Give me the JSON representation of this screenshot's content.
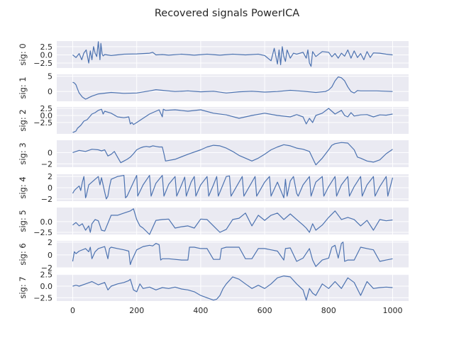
{
  "chart_data": {
    "type": "line",
    "title": "Recovered signals PowerICA",
    "x_ticks": [
      0,
      200,
      400,
      600,
      800,
      1000
    ],
    "xlim": [
      -50,
      1050
    ],
    "line_color": "#4c72b0",
    "panel_bg": "#eaeaf2",
    "grid": true,
    "subplots": [
      {
        "ylabel": "sig: 0",
        "ylim": [
          -4.0,
          4.2
        ],
        "yticks": [
          {
            "v": 2.5,
            "label": "2.5"
          },
          {
            "v": 0,
            "label": "0.0"
          },
          {
            "v": -2.5,
            "label": "−2.5"
          }
        ]
      },
      {
        "ylabel": "sig: 1",
        "ylim": [
          -3.2,
          5.6
        ],
        "yticks": [
          {
            "v": 5,
            "label": "5"
          },
          {
            "v": 0,
            "label": "0"
          }
        ]
      },
      {
        "ylabel": "sig: 2",
        "ylim": [
          -6.5,
          3.0
        ],
        "yticks": [
          {
            "v": 2.5,
            "label": "2.5"
          },
          {
            "v": 0,
            "label": "0.0"
          },
          {
            "v": -2.5,
            "label": "−2.5"
          }
        ]
      },
      {
        "ylabel": "sig: 3",
        "ylim": [
          -2.6,
          2.2
        ],
        "yticks": [
          {
            "v": 0,
            "label": "0"
          },
          {
            "v": -2,
            "label": "−2"
          }
        ]
      },
      {
        "ylabel": "sig: 4",
        "ylim": [
          -2.4,
          2.4
        ],
        "yticks": [
          {
            "v": 2,
            "label": "2"
          },
          {
            "v": 0,
            "label": "0"
          },
          {
            "v": -2,
            "label": "−2"
          }
        ]
      },
      {
        "ylabel": "sig: 5",
        "ylim": [
          -3.0,
          3.3
        ],
        "yticks": [
          {
            "v": 0,
            "label": "0.0"
          },
          {
            "v": -2.5,
            "label": "−2.5"
          }
        ]
      },
      {
        "ylabel": "sig: 6",
        "ylim": [
          -2.0,
          2.2
        ],
        "yticks": [
          {
            "v": 2,
            "label": "2"
          },
          {
            "v": 0,
            "label": "0"
          },
          {
            "v": -2,
            "label": "−2"
          }
        ]
      },
      {
        "ylabel": "sig: 7",
        "ylim": [
          -3.2,
          2.6
        ],
        "yticks": [
          {
            "v": 2.5,
            "label": "2.5"
          },
          {
            "v": 0,
            "label": "0.0"
          },
          {
            "v": -2.5,
            "label": "−2.5"
          }
        ]
      }
    ],
    "series": [
      {
        "x": [
          0,
          10,
          20,
          28,
          35,
          42,
          50,
          55,
          60,
          65,
          70,
          75,
          80,
          85,
          88,
          92,
          95,
          100,
          120,
          160,
          200,
          240,
          250,
          260,
          280,
          300,
          340,
          380,
          420,
          460,
          500,
          540,
          580,
          600,
          620,
          630,
          640,
          645,
          650,
          655,
          660,
          665,
          670,
          680,
          690,
          700,
          720,
          730,
          735,
          740,
          745,
          750,
          760,
          780,
          800,
          810,
          820,
          830,
          840,
          850,
          860,
          870,
          880,
          890,
          900,
          910,
          920,
          930,
          940,
          960,
          980,
          1000
        ],
        "y": [
          0,
          -0.8,
          0.4,
          -1.5,
          0.6,
          1.5,
          -2.5,
          1.2,
          -1.5,
          2.5,
          0.5,
          -0.5,
          4.0,
          -1.5,
          3.5,
          0.2,
          -0.3,
          0.1,
          -0.2,
          0.2,
          0.3,
          0.5,
          0.8,
          0.0,
          0.1,
          -0.1,
          0.2,
          -0.1,
          0.2,
          -0.1,
          0.2,
          0.0,
          0.2,
          -0.2,
          -1.8,
          2.0,
          -2.8,
          1.5,
          -3.0,
          2.5,
          -0.5,
          -2.0,
          1.5,
          -1.0,
          0.5,
          0.2,
          0.8,
          -1.0,
          1.5,
          -2.5,
          -3.5,
          1.0,
          -0.5,
          1.0,
          0.8,
          -0.6,
          0.4,
          -1.0,
          0.5,
          -0.4,
          1.5,
          -1.0,
          1.2,
          -0.8,
          0.4,
          -1.5,
          1.0,
          -0.8,
          0.6,
          0.5,
          0.2,
          0.0
        ]
      },
      {
        "x": [
          0,
          5,
          10,
          15,
          20,
          30,
          40,
          45,
          50,
          60,
          80,
          120,
          160,
          200,
          240,
          260,
          280,
          320,
          360,
          400,
          440,
          480,
          520,
          560,
          600,
          640,
          680,
          720,
          760,
          790,
          800,
          810,
          820,
          830,
          840,
          850,
          860,
          870,
          880,
          890,
          900,
          950,
          1000
        ],
        "y": [
          3.0,
          2.8,
          2.2,
          0.8,
          -0.5,
          -1.8,
          -2.5,
          -2.3,
          -2.0,
          -1.5,
          -0.8,
          -0.3,
          -0.6,
          -0.5,
          0.2,
          0.6,
          0.4,
          0.0,
          0.2,
          -0.1,
          0.1,
          -0.5,
          -0.1,
          0.1,
          -0.2,
          0.0,
          0.4,
          0.1,
          -0.3,
          0.0,
          0.5,
          1.5,
          3.5,
          4.8,
          4.5,
          3.5,
          1.5,
          0.0,
          -0.5,
          0.3,
          0.2,
          0.2,
          0.0
        ]
      },
      {
        "x": [
          0,
          5,
          10,
          15,
          25,
          35,
          45,
          60,
          70,
          80,
          90,
          95,
          100,
          120,
          140,
          160,
          175,
          180,
          185,
          190,
          200,
          220,
          240,
          260,
          270,
          280,
          283,
          290,
          320,
          360,
          400,
          440,
          480,
          520,
          560,
          600,
          640,
          680,
          700,
          720,
          730,
          740,
          750,
          760,
          780,
          800,
          820,
          840,
          850,
          860,
          870,
          880,
          900,
          920,
          940,
          960,
          980,
          1000
        ],
        "y": [
          -6.0,
          -5.8,
          -5.5,
          -4.5,
          -3.5,
          -2.0,
          -1.5,
          0.5,
          1.0,
          1.8,
          2.2,
          0.5,
          1.5,
          0.8,
          -0.5,
          -0.8,
          -0.5,
          -3.0,
          -2.5,
          -3.2,
          -2.5,
          -1.0,
          0.5,
          1.5,
          2.0,
          -0.5,
          2.2,
          1.8,
          2.0,
          1.5,
          2.0,
          0.8,
          0.2,
          -1.0,
          0.0,
          0.8,
          0.0,
          -0.5,
          0.3,
          -0.5,
          -3.0,
          -1.0,
          -2.5,
          0.0,
          0.8,
          2.5,
          0.5,
          1.8,
          0.0,
          -0.5,
          1.0,
          -0.2,
          0.2,
          0.3,
          -0.5,
          0.2,
          0.1,
          0.5
        ]
      },
      {
        "x": [
          0,
          20,
          40,
          60,
          80,
          90,
          100,
          110,
          120,
          130,
          140,
          150,
          160,
          170,
          180,
          190,
          200,
          210,
          220,
          230,
          240,
          250,
          260,
          270,
          280,
          285,
          290,
          320,
          360,
          400,
          420,
          440,
          460,
          480,
          500,
          520,
          540,
          560,
          580,
          600,
          620,
          640,
          660,
          680,
          700,
          720,
          740,
          750,
          760,
          780,
          800,
          810,
          820,
          840,
          860,
          880,
          890,
          900,
          920,
          940,
          960,
          980,
          1000
        ],
        "y": [
          0.0,
          0.4,
          0.2,
          0.6,
          0.5,
          0.3,
          0.5,
          -0.6,
          -0.3,
          0.2,
          -0.8,
          -1.8,
          -1.5,
          -1.2,
          -0.8,
          -0.2,
          0.5,
          0.8,
          1.0,
          1.1,
          1.0,
          1.2,
          1.1,
          1.0,
          1.0,
          -0.2,
          -1.5,
          -1.2,
          -0.3,
          0.5,
          1.0,
          1.3,
          1.2,
          0.8,
          0.2,
          -0.5,
          -1.0,
          -1.5,
          -1.0,
          -0.3,
          0.5,
          1.0,
          1.4,
          1.2,
          0.8,
          0.6,
          0.2,
          -1.0,
          -2.2,
          -1.0,
          0.5,
          1.3,
          1.6,
          1.8,
          1.7,
          0.5,
          -0.8,
          -1.0,
          -1.5,
          -1.7,
          -1.3,
          -0.2,
          0.6
        ]
      },
      {
        "x": [
          0,
          5,
          10,
          20,
          25,
          30,
          35,
          40,
          42,
          50,
          60,
          70,
          80,
          85,
          90,
          100,
          105,
          110,
          115,
          120,
          140,
          160,
          165,
          170,
          190,
          200,
          203,
          220,
          240,
          245,
          260,
          280,
          285,
          300,
          320,
          325,
          340,
          350,
          355,
          370,
          380,
          385,
          400,
          420,
          425,
          440,
          450,
          455,
          480,
          490,
          495,
          520,
          530,
          535,
          560,
          570,
          575,
          600,
          615,
          620,
          640,
          660,
          665,
          670,
          680,
          690,
          700,
          705,
          720,
          740,
          745,
          760,
          780,
          785,
          800,
          820,
          825,
          840,
          860,
          865,
          880,
          900,
          905,
          920,
          940,
          945,
          960,
          980,
          985,
          1000
        ],
        "y": [
          -1.0,
          -0.5,
          -0.2,
          0.3,
          -0.5,
          1.0,
          2.0,
          -1.8,
          -1.5,
          0.5,
          1.0,
          1.5,
          2.0,
          0.5,
          1.8,
          -0.8,
          -2.0,
          -1.5,
          0.2,
          1.5,
          2.0,
          2.2,
          -1.8,
          -1.5,
          1.0,
          2.2,
          -1.5,
          0.5,
          2.2,
          -1.5,
          0.8,
          2.2,
          -1.5,
          0.6,
          2.0,
          -1.5,
          0.5,
          1.9,
          -1.5,
          1.0,
          2.0,
          -1.5,
          0.5,
          2.0,
          -1.5,
          0.5,
          2.0,
          -1.5,
          2.0,
          2.1,
          -1.5,
          1.0,
          2.0,
          -1.5,
          1.0,
          2.0,
          -1.5,
          1.0,
          2.0,
          -1.5,
          1.0,
          -1.8,
          1.5,
          -1.5,
          1.2,
          2.0,
          -1.0,
          -1.5,
          0.5,
          2.0,
          -1.5,
          1.0,
          2.0,
          -1.5,
          0.2,
          2.0,
          -1.5,
          0.5,
          2.0,
          -1.5,
          0.2,
          2.0,
          -1.5,
          0.5,
          2.0,
          -1.5,
          0.2,
          2.0,
          -1.5,
          1.8
        ]
      },
      {
        "x": [
          0,
          10,
          20,
          30,
          40,
          50,
          55,
          60,
          70,
          80,
          90,
          100,
          120,
          140,
          160,
          180,
          190,
          200,
          210,
          220,
          240,
          260,
          280,
          300,
          320,
          340,
          360,
          380,
          400,
          420,
          440,
          460,
          480,
          500,
          520,
          540,
          560,
          580,
          600,
          620,
          640,
          660,
          680,
          700,
          720,
          730,
          740,
          750,
          760,
          780,
          800,
          820,
          840,
          860,
          880,
          900,
          920,
          940,
          960,
          980,
          1000
        ],
        "y": [
          -0.8,
          -0.2,
          -1.0,
          -0.5,
          -2.0,
          -1.0,
          -2.5,
          -0.5,
          0.5,
          0.2,
          -2.0,
          -2.2,
          1.5,
          1.5,
          2.0,
          2.5,
          3.0,
          0.5,
          -1.0,
          -1.5,
          -3.0,
          0.3,
          0.5,
          0.6,
          -1.5,
          -1.2,
          -1.0,
          -1.5,
          0.6,
          0.5,
          -1.0,
          -2.5,
          -1.8,
          0.5,
          0.8,
          2.0,
          -1.0,
          1.5,
          0.3,
          1.5,
          2.0,
          0.5,
          1.8,
          0.5,
          -0.8,
          -1.5,
          -2.5,
          -0.5,
          -2.0,
          -0.8,
          1.0,
          2.5,
          0.5,
          1.0,
          0.5,
          -1.0,
          0.3,
          -2.0,
          0.5,
          0.2,
          0.4
        ]
      },
      {
        "x": [
          0,
          5,
          10,
          20,
          40,
          50,
          55,
          60,
          70,
          80,
          100,
          110,
          115,
          120,
          140,
          160,
          175,
          180,
          185,
          200,
          220,
          240,
          250,
          260,
          270,
          275,
          280,
          300,
          340,
          360,
          365,
          380,
          400,
          420,
          440,
          460,
          465,
          480,
          520,
          540,
          560,
          580,
          600,
          620,
          640,
          660,
          665,
          680,
          700,
          720,
          740,
          750,
          760,
          780,
          800,
          810,
          820,
          830,
          840,
          845,
          850,
          860,
          880,
          900,
          920,
          940,
          960,
          980,
          1000
        ],
        "y": [
          -1.0,
          0.5,
          0.2,
          0.6,
          1.0,
          0.5,
          1.2,
          -0.6,
          0.5,
          1.0,
          1.3,
          -0.6,
          1.0,
          1.2,
          1.0,
          0.8,
          0.6,
          -1.5,
          -0.8,
          0.8,
          1.3,
          1.5,
          1.4,
          1.8,
          1.6,
          -0.8,
          -0.6,
          -0.6,
          -0.8,
          -0.8,
          1.2,
          1.2,
          1.0,
          1.0,
          -0.7,
          -0.7,
          1.0,
          1.2,
          1.2,
          -0.6,
          -0.6,
          1.0,
          1.0,
          0.8,
          0.6,
          -0.8,
          1.0,
          1.1,
          -1.0,
          -0.5,
          1.0,
          -0.8,
          -1.8,
          -0.8,
          -0.5,
          1.2,
          1.5,
          -0.5,
          1.8,
          2.0,
          -1.0,
          -0.8,
          -0.8,
          1.2,
          1.0,
          0.8,
          -1.0,
          -0.8,
          -0.6
        ]
      },
      {
        "x": [
          0,
          10,
          20,
          40,
          60,
          80,
          100,
          110,
          120,
          140,
          160,
          175,
          180,
          190,
          200,
          210,
          220,
          240,
          260,
          280,
          300,
          320,
          340,
          360,
          380,
          400,
          420,
          440,
          450,
          460,
          470,
          480,
          500,
          520,
          540,
          560,
          580,
          600,
          620,
          640,
          660,
          680,
          700,
          720,
          730,
          740,
          750,
          760,
          780,
          800,
          820,
          840,
          860,
          880,
          900,
          920,
          940,
          960,
          980,
          1000
        ],
        "y": [
          0.0,
          0.2,
          0.0,
          0.5,
          1.0,
          0.3,
          0.8,
          -0.8,
          0.0,
          0.5,
          0.8,
          1.2,
          1.5,
          -0.8,
          -1.2,
          0.5,
          -0.5,
          -0.2,
          -0.8,
          -0.3,
          -0.5,
          -0.2,
          -0.6,
          -0.8,
          -1.2,
          -2.0,
          -2.5,
          -3.0,
          -2.8,
          -2.0,
          -0.5,
          0.5,
          2.0,
          1.5,
          0.5,
          -0.5,
          0.2,
          -0.5,
          0.5,
          1.8,
          2.2,
          2.0,
          0.5,
          -0.8,
          -3.0,
          -0.5,
          -1.5,
          -2.0,
          0.5,
          -0.5,
          1.0,
          -0.5,
          1.8,
          0.8,
          -2.0,
          1.0,
          -0.5,
          -0.3,
          -0.2,
          -0.3
        ]
      }
    ]
  }
}
